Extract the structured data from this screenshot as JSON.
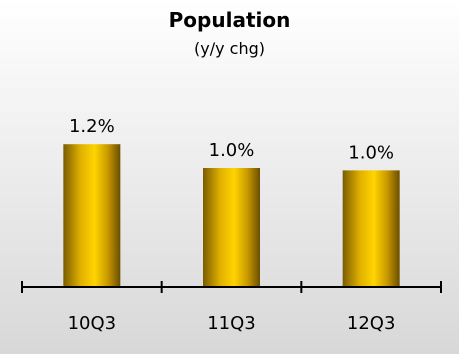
{
  "chart_data": {
    "type": "bar",
    "title": "Population",
    "subtitle": "(y/y chg)",
    "categories": [
      "10Q3",
      "11Q3",
      "12Q3"
    ],
    "values": [
      1.2,
      1.0,
      0.98
    ],
    "data_labels": [
      "1.2%",
      "1.0%",
      "1.0%"
    ],
    "xlabel": "",
    "ylabel": "",
    "ylim": [
      0,
      1.4
    ],
    "grid": false,
    "legend": "none",
    "colors": {
      "bar_light": "#FFD000",
      "bar_dark": "#7A5C00",
      "axis": "#000000",
      "background_top": "#FFFFFF",
      "background_bottom": "#D8D8D8"
    }
  }
}
